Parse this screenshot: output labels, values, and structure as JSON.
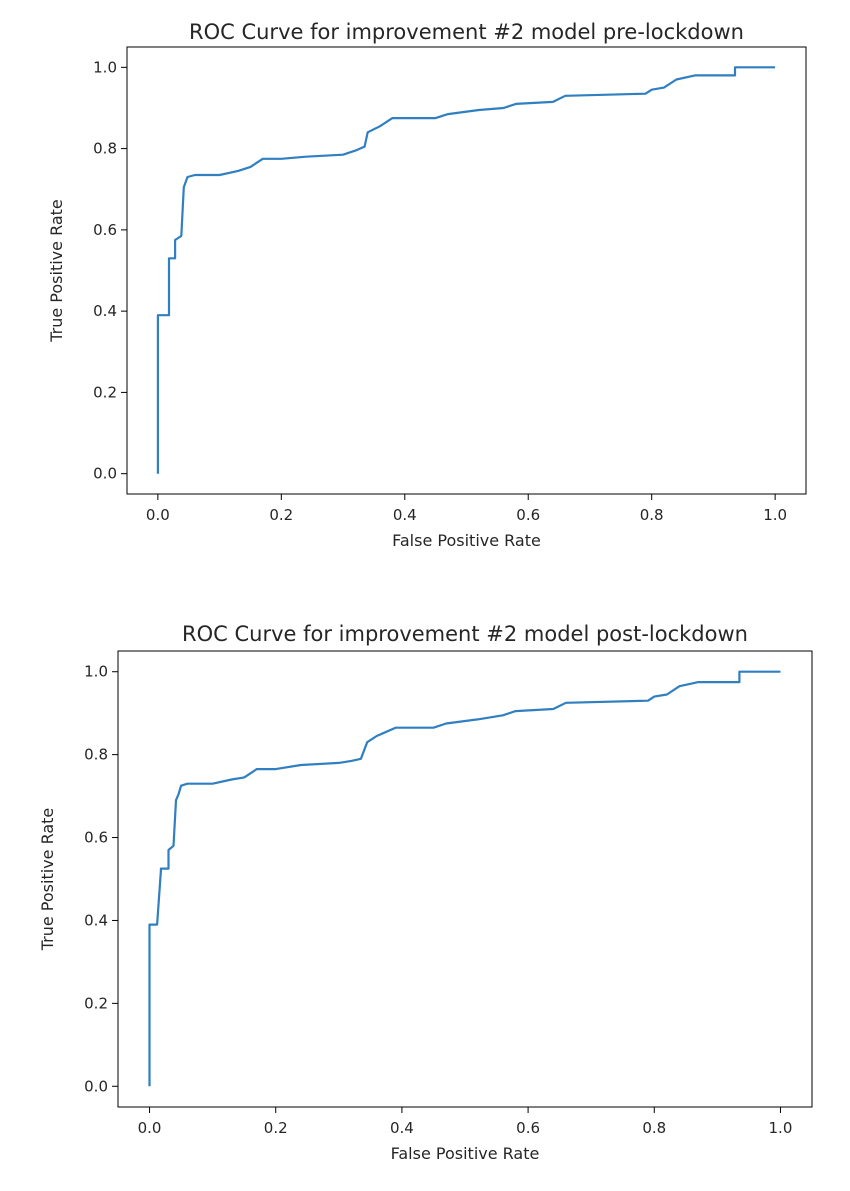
{
  "colors": {
    "line": "#2f7fc1"
  },
  "chart_data": [
    {
      "type": "line",
      "title": "ROC Curve for improvement #2 model pre-lockdown",
      "xlabel": "False Positive Rate",
      "ylabel": "True Positive Rate",
      "xlim": [
        -0.05,
        1.05
      ],
      "ylim": [
        -0.05,
        1.05
      ],
      "x_ticks": [
        0.0,
        0.2,
        0.4,
        0.6,
        0.8,
        1.0
      ],
      "x_tick_labels": [
        "0.0",
        "0.2",
        "0.4",
        "0.6",
        "0.8",
        "1.0"
      ],
      "y_ticks": [
        0.0,
        0.2,
        0.4,
        0.6,
        0.8,
        1.0
      ],
      "y_tick_labels": [
        "0.0",
        "0.2",
        "0.4",
        "0.6",
        "0.8",
        "1.0"
      ],
      "grid": false,
      "series": [
        {
          "x": [
            0.0,
            0.0,
            0.01,
            0.018,
            0.018,
            0.028,
            0.028,
            0.038,
            0.042,
            0.048,
            0.06,
            0.1,
            0.13,
            0.15,
            0.17,
            0.2,
            0.24,
            0.3,
            0.32,
            0.335,
            0.34,
            0.36,
            0.38,
            0.45,
            0.47,
            0.52,
            0.56,
            0.58,
            0.64,
            0.66,
            0.79,
            0.8,
            0.82,
            0.84,
            0.87,
            0.935,
            0.935,
            1.0
          ],
          "y": [
            0.0,
            0.39,
            0.39,
            0.39,
            0.53,
            0.53,
            0.575,
            0.585,
            0.705,
            0.73,
            0.735,
            0.735,
            0.745,
            0.755,
            0.775,
            0.775,
            0.78,
            0.785,
            0.795,
            0.805,
            0.84,
            0.855,
            0.875,
            0.875,
            0.885,
            0.895,
            0.9,
            0.91,
            0.915,
            0.93,
            0.935,
            0.945,
            0.95,
            0.97,
            0.98,
            0.98,
            1.0,
            1.0
          ]
        }
      ]
    },
    {
      "type": "line",
      "title": "ROC Curve for improvement #2 model post-lockdown",
      "xlabel": "False Positive Rate",
      "ylabel": "True Positive Rate",
      "xlim": [
        -0.05,
        1.05
      ],
      "ylim": [
        -0.05,
        1.05
      ],
      "x_ticks": [
        0.0,
        0.2,
        0.4,
        0.6,
        0.8,
        1.0
      ],
      "x_tick_labels": [
        "0.0",
        "0.2",
        "0.4",
        "0.6",
        "0.8",
        "1.0"
      ],
      "y_ticks": [
        0.0,
        0.2,
        0.4,
        0.6,
        0.8,
        1.0
      ],
      "y_tick_labels": [
        "0.0",
        "0.2",
        "0.4",
        "0.6",
        "0.8",
        "1.0"
      ],
      "grid": false,
      "series": [
        {
          "x": [
            0.0,
            0.0,
            0.012,
            0.012,
            0.018,
            0.018,
            0.03,
            0.03,
            0.038,
            0.042,
            0.046,
            0.05,
            0.06,
            0.1,
            0.13,
            0.15,
            0.17,
            0.2,
            0.24,
            0.3,
            0.32,
            0.335,
            0.345,
            0.36,
            0.39,
            0.45,
            0.47,
            0.52,
            0.56,
            0.58,
            0.64,
            0.66,
            0.79,
            0.8,
            0.82,
            0.84,
            0.87,
            0.935,
            0.935,
            1.0
          ],
          "y": [
            0.0,
            0.39,
            0.39,
            0.39,
            0.52,
            0.525,
            0.525,
            0.57,
            0.58,
            0.69,
            0.705,
            0.725,
            0.73,
            0.73,
            0.74,
            0.745,
            0.765,
            0.765,
            0.775,
            0.78,
            0.785,
            0.79,
            0.83,
            0.845,
            0.865,
            0.865,
            0.875,
            0.885,
            0.895,
            0.905,
            0.91,
            0.925,
            0.93,
            0.94,
            0.945,
            0.965,
            0.975,
            0.975,
            1.0,
            1.0
          ]
        }
      ]
    }
  ]
}
